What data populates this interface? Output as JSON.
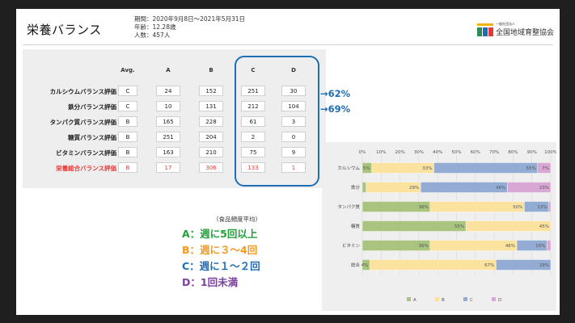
{
  "slide": {
    "title": "栄養バランス",
    "meta": [
      "期間：2020年9月8日～2021年5月31日",
      "年齢：12.28歳",
      "人数：457人"
    ],
    "logo": {
      "subtitle": "一般社団法人",
      "name": "全国地域育整協会"
    }
  },
  "table": {
    "headers": [
      "Avg.",
      "A",
      "B",
      "C",
      "D"
    ],
    "rows": [
      {
        "label": "カルシウムバランス評価",
        "cells": [
          "C",
          "24",
          "152",
          "251",
          "30"
        ]
      },
      {
        "label": "鉄分バランス評価",
        "cells": [
          "C",
          "10",
          "131",
          "212",
          "104"
        ]
      },
      {
        "label": "タンパク質バランス評価",
        "cells": [
          "B",
          "165",
          "228",
          "61",
          "3"
        ]
      },
      {
        "label": "糖質バランス評価",
        "cells": [
          "B",
          "251",
          "204",
          "2",
          "0"
        ]
      },
      {
        "label": "ビタミンバランス評価",
        "cells": [
          "B",
          "163",
          "210",
          "75",
          "9"
        ]
      },
      {
        "label": "栄養総合バランス評価",
        "cells": [
          "B",
          "17",
          "306",
          "133",
          "1"
        ]
      }
    ],
    "annotations": [
      "→62%",
      "→69%"
    ],
    "highlight_color": "#1e6db5",
    "total_color": "#e53935"
  },
  "frequency": {
    "title": "（食品頻度平均）",
    "items": [
      {
        "text": "A：週に5回以上",
        "color": "#21a33a"
      },
      {
        "text": "B：週に３～4回",
        "color": "#f39a1e"
      },
      {
        "text": "C：週に１～２回",
        "color": "#1e6db5"
      },
      {
        "text": "D：1回未満",
        "color": "#7b3fa0"
      }
    ]
  },
  "chart_data": {
    "type": "bar",
    "orientation": "horizontal",
    "stacked": true,
    "categories": [
      "カルシウム",
      "鉄分",
      "タンパク質",
      "糖質",
      "ビタミン",
      "総合"
    ],
    "xticks": [
      "0%",
      "10%",
      "20%",
      "30%",
      "40%",
      "50%",
      "60%",
      "70%",
      "80%",
      "90%",
      "100%"
    ],
    "xlim": [
      0,
      100
    ],
    "series": [
      {
        "name": "A",
        "color": "#a9c47f",
        "values": [
          5,
          2,
          36,
          55,
          36,
          4
        ]
      },
      {
        "name": "B",
        "color": "#fbe29f",
        "values": [
          33,
          29,
          50,
          45,
          46,
          67
        ]
      },
      {
        "name": "C",
        "color": "#92acd4",
        "values": [
          55,
          46,
          13,
          0,
          16,
          29
        ]
      },
      {
        "name": "D",
        "color": "#d9a7d3",
        "values": [
          7,
          23,
          1,
          0,
          2,
          0
        ]
      }
    ],
    "labels": [
      [
        "5%",
        "33%",
        "55%",
        "7%"
      ],
      [
        "",
        "29%",
        "46%",
        "23%"
      ],
      [
        "36%",
        "50%",
        "13%",
        ""
      ],
      [
        "55%",
        "45%",
        "",
        ""
      ],
      [
        "36%",
        "46%",
        "16%",
        ""
      ],
      [
        "4%",
        "67%",
        "29%",
        ""
      ]
    ],
    "legend": "bottom",
    "grid": true
  }
}
